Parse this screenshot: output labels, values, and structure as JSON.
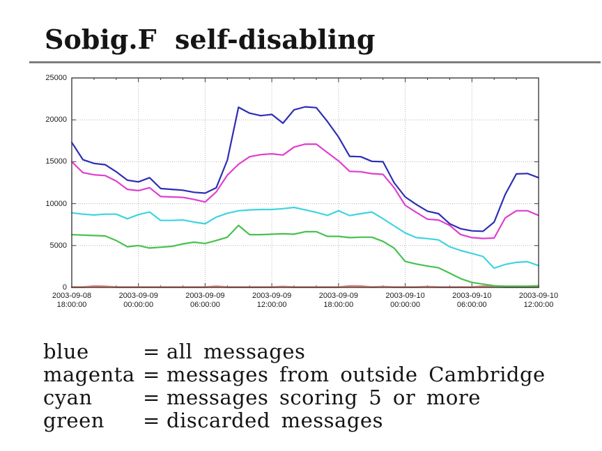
{
  "page": {
    "title": "Sobig.F  self-disabling"
  },
  "chart_data": {
    "type": "line",
    "title": "",
    "xlabel": "",
    "ylabel": "",
    "grid": true,
    "background": "#ffffff",
    "border_color": "#3d3d3d",
    "grid_color": "#b4b4b4",
    "label_color": "#1a1a1a",
    "x_axis": {
      "start": "2003-09-08 18:00:00",
      "end": "2003-09-10 12:00:00",
      "total_hours": 42,
      "tick_interval_hours": 6,
      "ticks": [
        {
          "date": "2003-09-08",
          "time": "18:00:00"
        },
        {
          "date": "2003-09-09",
          "time": "00:00:00"
        },
        {
          "date": "2003-09-09",
          "time": "06:00:00"
        },
        {
          "date": "2003-09-09",
          "time": "12:00:00"
        },
        {
          "date": "2003-09-09",
          "time": "18:00:00"
        },
        {
          "date": "2003-09-10",
          "time": "00:00:00"
        },
        {
          "date": "2003-09-10",
          "time": "06:00:00"
        },
        {
          "date": "2003-09-10",
          "time": "12:00:00"
        }
      ]
    },
    "y_axis": {
      "min": 0,
      "max": 25000,
      "tick_step": 5000,
      "ticks": [
        0,
        5000,
        10000,
        15000,
        20000,
        25000
      ]
    },
    "series": [
      {
        "color_name": "blue",
        "name": "all messages",
        "color": "#2d2db5",
        "values": [
          17300,
          15250,
          14800,
          14650,
          13800,
          12800,
          12600,
          13100,
          11800,
          11700,
          11600,
          11350,
          11250,
          11900,
          15200,
          21500,
          20800,
          20500,
          20650,
          19600,
          21200,
          21550,
          21450,
          19800,
          17950,
          15650,
          15600,
          15050,
          15000,
          12500,
          10800,
          9900,
          9100,
          8800,
          7600,
          7000,
          6750,
          6700,
          7800,
          11100,
          13550,
          13600,
          13100
        ]
      },
      {
        "color_name": "magenta",
        "name": "messages from outside Cambridge",
        "color": "#de3fce",
        "values": [
          15000,
          13700,
          13450,
          13350,
          12700,
          11700,
          11550,
          11900,
          10850,
          10800,
          10750,
          10500,
          10200,
          11400,
          13400,
          14700,
          15600,
          15850,
          15950,
          15800,
          16750,
          17100,
          17100,
          16100,
          15100,
          13850,
          13800,
          13580,
          13500,
          11900,
          9800,
          8950,
          8150,
          8050,
          7400,
          6300,
          5950,
          5850,
          5900,
          8300,
          9150,
          9150,
          8600
        ]
      },
      {
        "color_name": "cyan",
        "name": "messages scoring 5 or more",
        "color": "#3ed4e0",
        "values": [
          8900,
          8750,
          8650,
          8750,
          8750,
          8200,
          8700,
          9000,
          8000,
          8000,
          8050,
          7800,
          7600,
          8400,
          8850,
          9150,
          9250,
          9300,
          9300,
          9400,
          9550,
          9250,
          8950,
          8600,
          9150,
          8580,
          8800,
          9000,
          8200,
          7350,
          6500,
          5950,
          5830,
          5670,
          4850,
          4400,
          4050,
          3700,
          2300,
          2750,
          3000,
          3070,
          2600
        ]
      },
      {
        "color_name": "green",
        "name": "discarded messages",
        "color": "#46c24e",
        "values": [
          6300,
          6250,
          6200,
          6150,
          5600,
          4850,
          5000,
          4700,
          4800,
          4900,
          5200,
          5400,
          5250,
          5600,
          6000,
          7400,
          6300,
          6300,
          6350,
          6400,
          6350,
          6650,
          6650,
          6100,
          6100,
          5950,
          6000,
          6000,
          5500,
          4700,
          3100,
          2800,
          2550,
          2350,
          1700,
          1050,
          600,
          400,
          200,
          150,
          150,
          150,
          200
        ]
      },
      {
        "color_name": "red",
        "name": "",
        "color": "#d9796f",
        "values": [
          30,
          30,
          150,
          120,
          30,
          30,
          30,
          30,
          30,
          30,
          30,
          30,
          30,
          130,
          30,
          30,
          30,
          30,
          30,
          100,
          30,
          30,
          30,
          30,
          30,
          170,
          150,
          30,
          90,
          30,
          30,
          30,
          90,
          30,
          30,
          30,
          30,
          140,
          110,
          30,
          30,
          30,
          50
        ]
      }
    ]
  },
  "legend": {
    "rows": [
      {
        "name": "blue",
        "eq": "=",
        "desc": "all messages"
      },
      {
        "name": "magenta",
        "eq": "=",
        "desc": "messages from outside Cambridge"
      },
      {
        "name": "cyan",
        "eq": "=",
        "desc": "messages scoring 5 or more"
      },
      {
        "name": "green",
        "eq": "=",
        "desc": "discarded messages"
      }
    ]
  }
}
